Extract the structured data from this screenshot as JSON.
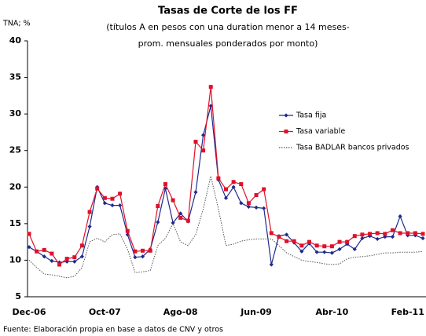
{
  "chart_data": {
    "type": "line",
    "title": "Tasas de Corte de los FF",
    "subtitle": [
      "(títulos A en pesos con una duration menor a 14 meses-",
      "prom. mensuales ponderados por monto)"
    ],
    "y_label": "TNA; %",
    "source": "Fuente: Elaboración propia en base a datos de CNV y otros",
    "categories": [
      "Dec-06",
      null,
      null,
      null,
      null,
      null,
      null,
      null,
      null,
      null,
      "Oct-07",
      null,
      null,
      null,
      null,
      null,
      null,
      null,
      null,
      null,
      "Ago-08",
      null,
      null,
      null,
      null,
      null,
      null,
      null,
      null,
      null,
      "Jun-09",
      null,
      null,
      null,
      null,
      null,
      null,
      null,
      null,
      null,
      "Abr-10",
      null,
      null,
      null,
      null,
      null,
      null,
      null,
      null,
      null,
      "Feb-11",
      null,
      null
    ],
    "ylim": [
      5,
      40
    ],
    "yticks": [
      5,
      10,
      15,
      20,
      25,
      30,
      35,
      40
    ],
    "series": [
      {
        "name": "Tasa fija",
        "color": "#1f2a8c",
        "marker": "diamond",
        "style": "solid",
        "values": [
          11.8,
          11.2,
          10.5,
          9.9,
          9.7,
          9.8,
          9.8,
          10.5,
          14.6,
          20.0,
          17.8,
          17.5,
          17.5,
          13.5,
          10.4,
          10.5,
          11.5,
          15.2,
          19.8,
          15.1,
          16.4,
          15.3,
          19.3,
          27.1,
          31.1,
          21.0,
          18.5,
          20.0,
          17.8,
          17.3,
          17.2,
          17.1,
          9.4,
          13.3,
          13.5,
          12.4,
          11.2,
          12.3,
          11.1,
          11.1,
          11.0,
          11.5,
          12.2,
          11.5,
          13.0,
          13.3,
          12.9,
          13.2,
          13.2,
          16.0,
          13.4,
          13.4,
          13.0
        ]
      },
      {
        "name": "Tasa variable",
        "color": "#e0102a",
        "marker": "square",
        "style": "solid",
        "values": [
          13.6,
          11.2,
          11.4,
          10.9,
          9.4,
          10.2,
          10.4,
          12.0,
          16.6,
          19.8,
          18.5,
          18.4,
          19.1,
          14.0,
          11.2,
          11.3,
          11.3,
          17.4,
          20.4,
          18.2,
          15.8,
          15.4,
          26.2,
          25.0,
          33.7,
          21.2,
          19.7,
          20.7,
          20.4,
          17.8,
          18.9,
          19.7,
          13.7,
          13.2,
          12.6,
          12.6,
          12.0,
          12.5,
          12.0,
          11.9,
          11.9,
          12.5,
          12.5,
          13.3,
          13.5,
          13.6,
          13.7,
          13.6,
          14.1,
          13.7,
          13.7,
          13.7,
          13.6
        ]
      },
      {
        "name": "Tasa BADLAR bancos privados",
        "color": "#555555",
        "marker": "none",
        "style": "dotted",
        "values": [
          10.0,
          9.0,
          8.1,
          8.0,
          7.8,
          7.6,
          7.8,
          9.0,
          12.5,
          13.0,
          12.5,
          13.5,
          13.6,
          11.5,
          8.3,
          8.4,
          8.6,
          12.0,
          13.0,
          15.0,
          12.5,
          12.0,
          13.5,
          17.0,
          21.5,
          17.0,
          12.0,
          12.2,
          12.6,
          12.8,
          12.9,
          12.9,
          12.9,
          12.0,
          11.0,
          10.5,
          10.0,
          9.8,
          9.7,
          9.5,
          9.4,
          9.5,
          10.2,
          10.4,
          10.5,
          10.6,
          10.8,
          11.0,
          11.0,
          11.1,
          11.1,
          11.1,
          11.2
        ]
      }
    ]
  }
}
